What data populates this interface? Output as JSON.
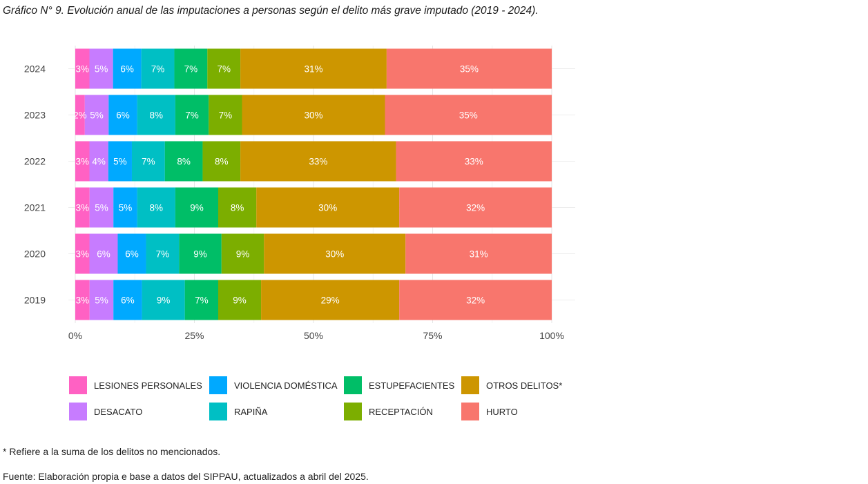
{
  "title": "Gráfico N° 9. Evolución anual de las imputaciones a personas según el delito más grave imputado (2019 - 2024).",
  "note": "* Refiere a la suma de los delitos no mencionados.",
  "source": "Fuente: Elaboración propia e base a datos del SIPPAU, actualizados a abril del 2025.",
  "chart_data": {
    "type": "bar",
    "orientation": "horizontal",
    "stacked": "percent",
    "title": "",
    "xlabel": "",
    "ylabel": "",
    "xlim": [
      0,
      100
    ],
    "x_ticks": [
      "0%",
      "25%",
      "50%",
      "75%",
      "100%"
    ],
    "grid": true,
    "legend_position": "bottom",
    "categories": [
      "2024",
      "2023",
      "2022",
      "2021",
      "2020",
      "2019"
    ],
    "series": [
      {
        "name": "LESIONES PERSONALES",
        "color": "#FF61C3",
        "values": [
          3,
          2,
          3,
          3,
          3,
          3
        ],
        "labels": [
          "3%",
          "2%",
          "3%",
          "3%",
          "3%",
          "3%"
        ]
      },
      {
        "name": "DESACATO",
        "color": "#C77CFF",
        "values": [
          5,
          5,
          4,
          5,
          6,
          5
        ],
        "labels": [
          "5%",
          "5%",
          "4%",
          "5%",
          "6%",
          "5%"
        ]
      },
      {
        "name": "VIOLENCIA DOMÉSTICA",
        "color": "#00A9FF",
        "values": [
          6,
          6,
          5,
          5,
          6,
          6
        ],
        "labels": [
          "6%",
          "6%",
          "5%",
          "5%",
          "6%",
          "6%"
        ]
      },
      {
        "name": "RAPIÑA",
        "color": "#00BFC4",
        "values": [
          7,
          8,
          7,
          8,
          7,
          9
        ],
        "labels": [
          "7%",
          "8%",
          "7%",
          "8%",
          "7%",
          "9%"
        ]
      },
      {
        "name": "ESTUPEFACIENTES",
        "color": "#00BE67",
        "values": [
          7,
          7,
          8,
          9,
          9,
          7
        ],
        "labels": [
          "7%",
          "7%",
          "8%",
          "9%",
          "9%",
          "7%"
        ]
      },
      {
        "name": "RECEPTACIÓN",
        "color": "#7CAE00",
        "values": [
          7,
          7,
          8,
          8,
          9,
          9
        ],
        "labels": [
          "7%",
          "7%",
          "8%",
          "8%",
          "9%",
          "9%"
        ]
      },
      {
        "name": "OTROS DELITOS*",
        "color": "#CD9600",
        "values": [
          31,
          30,
          33,
          30,
          30,
          29
        ],
        "labels": [
          "31%",
          "30%",
          "33%",
          "30%",
          "30%",
          "29%"
        ]
      },
      {
        "name": "HURTO",
        "color": "#F8766D",
        "values": [
          35,
          35,
          33,
          32,
          31,
          32
        ],
        "labels": [
          "35%",
          "35%",
          "33%",
          "32%",
          "31%",
          "32%"
        ]
      }
    ],
    "legend_order": [
      "LESIONES PERSONALES",
      "DESACATO",
      "VIOLENCIA DOMÉSTICA",
      "RAPIÑA",
      "ESTUPEFACIENTES",
      "RECEPTACIÓN",
      "OTROS DELITOS*",
      "HURTO"
    ]
  }
}
